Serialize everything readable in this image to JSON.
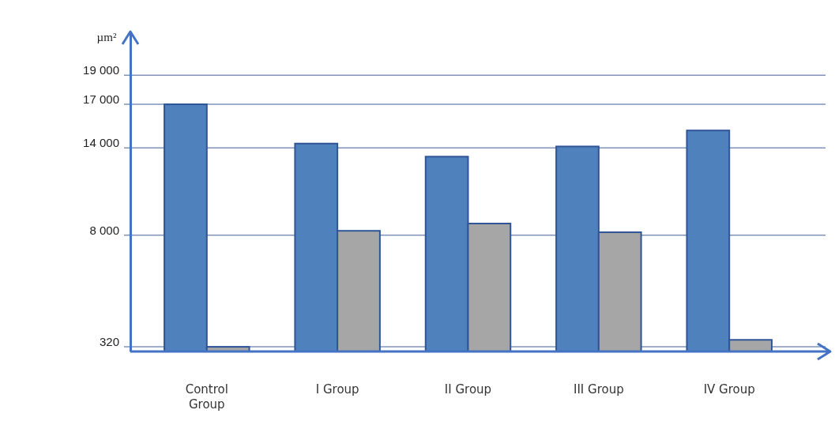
{
  "chart_data": {
    "type": "bar",
    "ylabel": "µm²",
    "categories": [
      "Control Group",
      "I Group",
      "II Group",
      "III Group",
      "IV Group"
    ],
    "series": [
      {
        "color": "#4f81bd",
        "values": [
          17000,
          14300,
          13400,
          14100,
          15200
        ]
      },
      {
        "color": "#a6a6a6",
        "values": [
          320,
          8300,
          8800,
          8200,
          800
        ]
      }
    ],
    "ylim": [
      0,
      22000
    ],
    "yticks": [
      320,
      {
        "value": 8000,
        "label": "8 000"
      },
      {
        "value": 14000,
        "label": "14 000"
      },
      {
        "value": 17000,
        "label": "17 000"
      },
      {
        "value": 19000,
        "label": "19 000"
      }
    ],
    "grid": "y"
  }
}
